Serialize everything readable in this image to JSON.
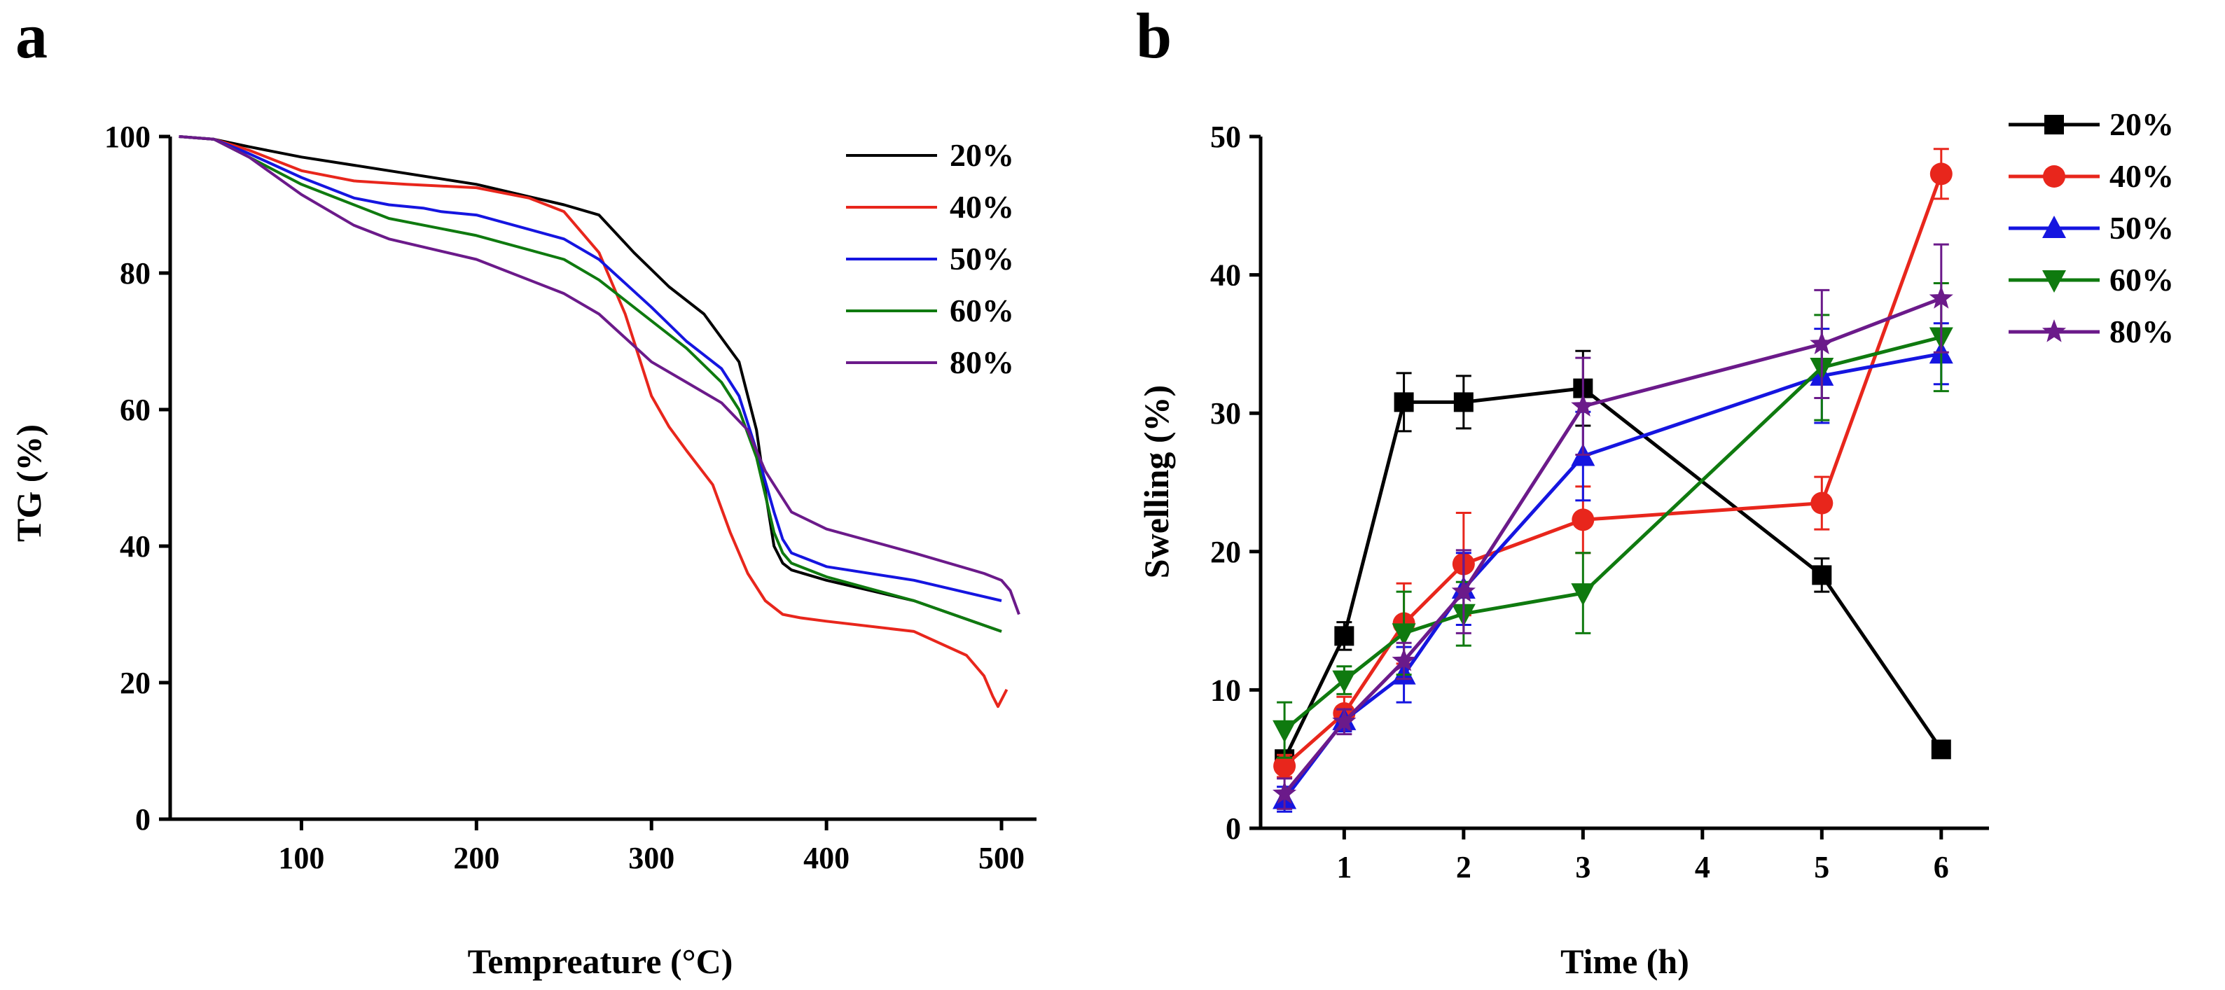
{
  "figure": {
    "panel_labels": [
      "a",
      "b"
    ]
  },
  "chart_data": [
    {
      "panel": "a",
      "type": "line",
      "title": "",
      "xlabel": "Tempreature (°C)",
      "ylabel": "TG (%)",
      "xlim": [
        25,
        520
      ],
      "ylim": [
        0,
        100
      ],
      "xticks": [
        100,
        200,
        300,
        400,
        500
      ],
      "yticks": [
        0,
        20,
        40,
        60,
        80,
        100
      ],
      "legend": "top-right",
      "series": [
        {
          "name": "20%",
          "color": "#000000",
          "x": [
            30,
            50,
            70,
            100,
            150,
            200,
            250,
            270,
            290,
            310,
            330,
            350,
            360,
            365,
            370,
            375,
            380,
            400,
            450,
            500
          ],
          "y": [
            100,
            99.6,
            98.5,
            97,
            95,
            93,
            90,
            88.5,
            83,
            78,
            74,
            67,
            57,
            48,
            40,
            37.5,
            36.5,
            35,
            32,
            27.5
          ]
        },
        {
          "name": "40%",
          "color": "#e8261c",
          "x": [
            30,
            50,
            70,
            100,
            130,
            160,
            200,
            230,
            250,
            270,
            285,
            300,
            310,
            320,
            335,
            345,
            355,
            365,
            375,
            385,
            400,
            450,
            480,
            490,
            495,
            498,
            500,
            503
          ],
          "y": [
            100,
            99.6,
            98,
            95,
            93.5,
            93,
            92.5,
            91,
            89,
            83,
            74,
            62,
            57.5,
            54,
            49,
            42,
            36,
            32,
            30,
            29.5,
            29,
            27.5,
            24,
            21,
            18,
            16.5,
            17.5,
            19
          ]
        },
        {
          "name": "50%",
          "color": "#1515e0",
          "x": [
            30,
            50,
            70,
            100,
            130,
            150,
            170,
            180,
            200,
            250,
            270,
            300,
            320,
            340,
            350,
            360,
            370,
            375,
            380,
            400,
            450,
            500
          ],
          "y": [
            100,
            99.6,
            97.5,
            94,
            91,
            90,
            89.5,
            89,
            88.5,
            85,
            82,
            75,
            70,
            66,
            62,
            54,
            45,
            41,
            39,
            37,
            35,
            32
          ]
        },
        {
          "name": "60%",
          "color": "#0f7a0f",
          "x": [
            30,
            50,
            70,
            100,
            130,
            150,
            200,
            250,
            270,
            300,
            320,
            340,
            350,
            360,
            370,
            375,
            380,
            400,
            450,
            500
          ],
          "y": [
            100,
            99.6,
            97,
            93,
            90,
            88,
            85.5,
            82,
            79,
            73,
            69,
            64,
            60,
            53,
            42,
            39,
            37.5,
            35.5,
            32,
            27.5
          ]
        },
        {
          "name": "80%",
          "color": "#6b1a8a",
          "x": [
            30,
            50,
            70,
            100,
            130,
            150,
            200,
            250,
            270,
            300,
            320,
            340,
            355,
            365,
            375,
            380,
            400,
            450,
            490,
            500,
            505,
            510
          ],
          "y": [
            100,
            99.6,
            97,
            91.5,
            87,
            85,
            82,
            77,
            74,
            67,
            64,
            61,
            57,
            51,
            47,
            45,
            42.5,
            39,
            36,
            35,
            33.5,
            30
          ]
        }
      ]
    },
    {
      "panel": "b",
      "type": "line",
      "title": "",
      "xlabel": "Time (h)",
      "ylabel": "Swelling (%)",
      "xlim": [
        0.3,
        6.4
      ],
      "ylim": [
        0,
        50
      ],
      "xticks": [
        1,
        2,
        3,
        4,
        5,
        6
      ],
      "yticks": [
        0,
        10,
        20,
        30,
        40,
        50
      ],
      "legend": "top-right",
      "categories": [
        0.5,
        1,
        1.5,
        2,
        3,
        5,
        6
      ],
      "series": [
        {
          "name": "20%",
          "color": "#000000",
          "marker": "square",
          "values": [
            5.0,
            13.9,
            30.8,
            30.8,
            31.8,
            18.3,
            5.7
          ],
          "errors": [
            0.6,
            1.0,
            2.1,
            1.9,
            2.7,
            1.2,
            0.4
          ]
        },
        {
          "name": "40%",
          "color": "#e8261c",
          "marker": "circle",
          "values": [
            4.5,
            8.3,
            14.8,
            19.1,
            22.3,
            23.5,
            47.3
          ],
          "errors": [
            0.8,
            1.2,
            2.9,
            3.7,
            2.4,
            1.9,
            1.8
          ]
        },
        {
          "name": "50%",
          "color": "#1515e0",
          "marker": "triangle-up",
          "values": [
            2.1,
            7.8,
            11.1,
            17.3,
            26.9,
            32.7,
            34.3
          ],
          "errors": [
            0.9,
            0.8,
            2.0,
            2.6,
            3.2,
            3.4,
            2.2
          ]
        },
        {
          "name": "60%",
          "color": "#0f7a0f",
          "marker": "triangle-down",
          "values": [
            7.1,
            10.7,
            14.1,
            15.5,
            17.0,
            33.3,
            35.5
          ],
          "errors": [
            2.0,
            1.0,
            3.0,
            2.3,
            2.9,
            3.8,
            3.9
          ]
        },
        {
          "name": "80%",
          "color": "#6b1a8a",
          "marker": "star",
          "values": [
            2.5,
            7.7,
            12.1,
            17.1,
            30.5,
            35.0,
            38.3
          ],
          "errors": [
            1.1,
            0.9,
            1.3,
            3.0,
            3.5,
            3.9,
            3.9
          ]
        }
      ]
    }
  ]
}
